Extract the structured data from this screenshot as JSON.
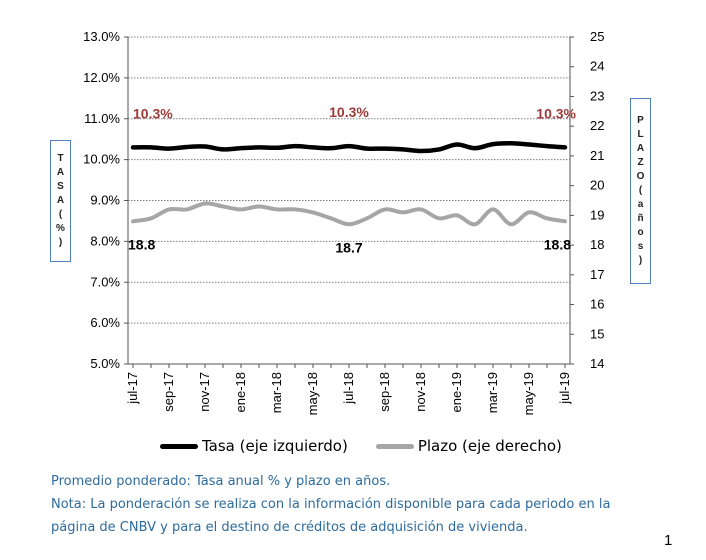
{
  "chart_data": {
    "type": "line",
    "categories": [
      "jul-17",
      "ago-17",
      "sep-17",
      "oct-17",
      "nov-17",
      "dic-17",
      "ene-18",
      "feb-18",
      "mar-18",
      "abr-18",
      "may-18",
      "jun-18",
      "jul-18",
      "ago-18",
      "sep-18",
      "oct-18",
      "nov-18",
      "dic-18",
      "ene-19",
      "feb-19",
      "mar-19",
      "abr-19",
      "may-19",
      "jun-19",
      "jul-19"
    ],
    "tick_labels": [
      "jul-17",
      "sep-17",
      "nov-17",
      "ene-18",
      "mar-18",
      "may-18",
      "jul-18",
      "sep-18",
      "nov-18",
      "ene-19",
      "mar-19",
      "may-19",
      "jul-19"
    ],
    "ylabel_left": [
      "T",
      "A",
      "S",
      "A",
      "(",
      "%",
      ")"
    ],
    "ylabel_right": [
      "P",
      "L",
      "A",
      "Z",
      "O",
      "(",
      "a",
      "ñ",
      "o",
      "s",
      ")"
    ],
    "y_left": {
      "min": 5.0,
      "max": 13.0,
      "step": 1.0,
      "tick_labels": [
        "5.0%",
        "6.0%",
        "7.0%",
        "8.0%",
        "9.0%",
        "10.0%",
        "11.0%",
        "12.0%",
        "13.0%"
      ]
    },
    "y_right": {
      "min": 14,
      "max": 25,
      "step": 1,
      "tick_labels": [
        "14",
        "15",
        "16",
        "17",
        "18",
        "19",
        "20",
        "21",
        "22",
        "23",
        "24",
        "25"
      ]
    },
    "grid": true,
    "series": [
      {
        "name": "Tasa (eje izquierdo)",
        "axis": "left",
        "color": "#000000",
        "values": [
          10.3,
          10.3,
          10.27,
          10.31,
          10.32,
          10.25,
          10.28,
          10.3,
          10.29,
          10.33,
          10.3,
          10.28,
          10.33,
          10.27,
          10.27,
          10.25,
          10.21,
          10.25,
          10.37,
          10.28,
          10.38,
          10.4,
          10.37,
          10.33,
          10.3
        ]
      },
      {
        "name": "Plazo (eje derecho)",
        "axis": "right",
        "color": "#a6a6a6",
        "values": [
          18.8,
          18.9,
          19.2,
          19.2,
          19.4,
          19.3,
          19.2,
          19.3,
          19.2,
          19.2,
          19.1,
          18.9,
          18.7,
          18.9,
          19.2,
          19.1,
          19.2,
          18.9,
          19.0,
          18.7,
          19.2,
          18.7,
          19.1,
          18.9,
          18.8
        ]
      }
    ],
    "annotations": [
      {
        "text": "10.3%",
        "series": 0,
        "index": 0
      },
      {
        "text": "10.3%",
        "series": 0,
        "index": 12
      },
      {
        "text": "10.3%",
        "series": 0,
        "index": 24
      },
      {
        "text": "18.8",
        "series": 1,
        "index": 0
      },
      {
        "text": "18.7",
        "series": 1,
        "index": 12
      },
      {
        "text": "18.8",
        "series": 1,
        "index": 24
      }
    ],
    "annotation_color": "#9e3a3a",
    "legend_position": "bottom"
  },
  "notes": [
    "Promedio ponderado: Tasa anual % y plazo en años.",
    "Nota: La ponderación se realiza con la información disponible para cada periodo en la",
    "página de CNBV y para el destino de créditos de adquisición de vivienda."
  ],
  "page_number": "1"
}
